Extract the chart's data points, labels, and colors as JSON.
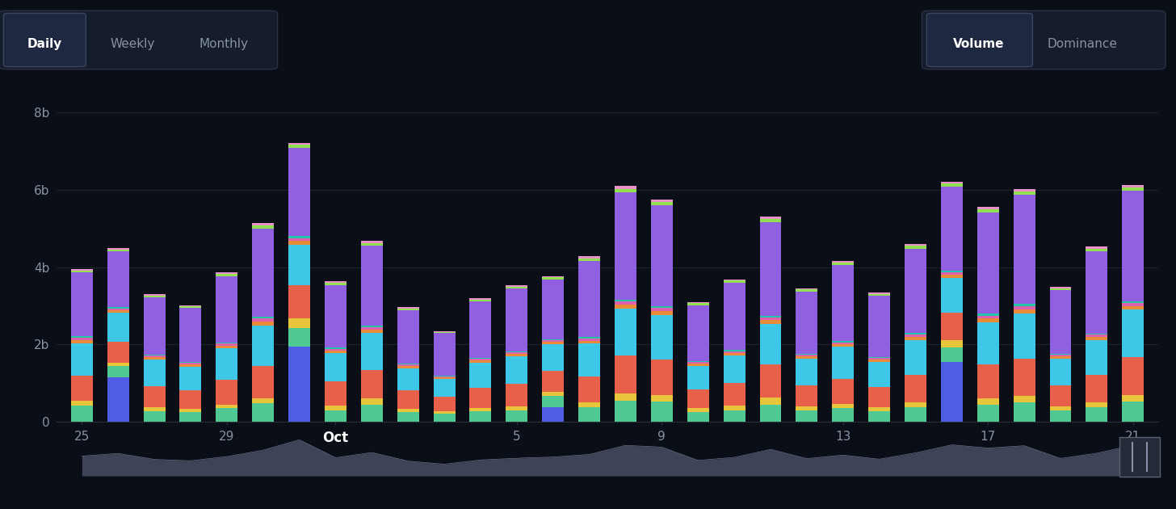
{
  "background_color": "#0a0e17",
  "plot_bg_color": "#0a0e17",
  "grid_color": "#1e2330",
  "text_color": "#8892a4",
  "ylim": [
    0,
    9000000000.0
  ],
  "ylabel_ticks": [
    "0",
    "2b",
    "4b",
    "6b",
    "8b"
  ],
  "ylabel_vals": [
    0,
    2000000000.0,
    4000000000.0,
    6000000000.0,
    8000000000.0
  ],
  "bar_width": 0.6,
  "layers": [
    {
      "name": "blue",
      "color": "#4e5de4",
      "values": [
        0.0,
        1.15,
        0.0,
        0.0,
        0.0,
        0.0,
        1.95,
        0.0,
        0.0,
        0.0,
        0.0,
        0.0,
        0.0,
        0.38,
        0.0,
        0.0,
        0.0,
        0.0,
        0.0,
        0.0,
        0.0,
        0.0,
        0.0,
        0.0,
        1.55,
        0.0,
        0.0,
        0.0,
        0.0,
        0.0
      ]
    },
    {
      "name": "green",
      "color": "#4ec994",
      "values": [
        0.42,
        0.3,
        0.28,
        0.25,
        0.35,
        0.48,
        0.48,
        0.3,
        0.45,
        0.25,
        0.22,
        0.28,
        0.3,
        0.3,
        0.38,
        0.55,
        0.52,
        0.25,
        0.3,
        0.45,
        0.3,
        0.35,
        0.28,
        0.38,
        0.38,
        0.45,
        0.5,
        0.3,
        0.38,
        0.52
      ]
    },
    {
      "name": "yellow",
      "color": "#e8c53a",
      "values": [
        0.12,
        0.08,
        0.1,
        0.08,
        0.1,
        0.12,
        0.25,
        0.12,
        0.15,
        0.08,
        0.06,
        0.08,
        0.1,
        0.1,
        0.12,
        0.18,
        0.18,
        0.1,
        0.12,
        0.18,
        0.1,
        0.12,
        0.1,
        0.12,
        0.18,
        0.15,
        0.18,
        0.1,
        0.12,
        0.18
      ]
    },
    {
      "name": "red",
      "color": "#e8604a",
      "values": [
        0.65,
        0.55,
        0.55,
        0.48,
        0.65,
        0.85,
        0.85,
        0.62,
        0.75,
        0.48,
        0.38,
        0.52,
        0.58,
        0.55,
        0.68,
        0.98,
        0.92,
        0.48,
        0.58,
        0.85,
        0.55,
        0.65,
        0.52,
        0.72,
        0.72,
        0.88,
        0.95,
        0.55,
        0.72,
        0.98
      ]
    },
    {
      "name": "cyan",
      "color": "#3ec8e8",
      "values": [
        0.85,
        0.75,
        0.68,
        0.62,
        0.8,
        1.05,
        1.05,
        0.75,
        0.95,
        0.58,
        0.45,
        0.65,
        0.72,
        0.68,
        0.85,
        1.22,
        1.15,
        0.62,
        0.72,
        1.05,
        0.68,
        0.82,
        0.65,
        0.9,
        0.9,
        1.1,
        1.18,
        0.68,
        0.9,
        1.22
      ]
    },
    {
      "name": "orange",
      "color": "#e88c3a",
      "values": [
        0.08,
        0.06,
        0.06,
        0.05,
        0.07,
        0.1,
        0.1,
        0.06,
        0.08,
        0.05,
        0.04,
        0.06,
        0.06,
        0.06,
        0.07,
        0.1,
        0.1,
        0.05,
        0.06,
        0.1,
        0.06,
        0.07,
        0.06,
        0.08,
        0.08,
        0.1,
        0.1,
        0.06,
        0.08,
        0.1
      ]
    },
    {
      "name": "magenta",
      "color": "#e060b0",
      "values": [
        0.05,
        0.04,
        0.04,
        0.04,
        0.05,
        0.07,
        0.07,
        0.04,
        0.06,
        0.04,
        0.03,
        0.04,
        0.04,
        0.04,
        0.05,
        0.08,
        0.07,
        0.04,
        0.05,
        0.07,
        0.04,
        0.05,
        0.04,
        0.06,
        0.06,
        0.07,
        0.08,
        0.04,
        0.05,
        0.07
      ]
    },
    {
      "name": "teal",
      "color": "#20c8a8",
      "values": [
        0.04,
        0.03,
        0.03,
        0.03,
        0.04,
        0.05,
        0.05,
        0.03,
        0.04,
        0.03,
        0.02,
        0.03,
        0.03,
        0.03,
        0.04,
        0.05,
        0.05,
        0.03,
        0.04,
        0.05,
        0.03,
        0.04,
        0.03,
        0.04,
        0.04,
        0.05,
        0.06,
        0.03,
        0.04,
        0.05
      ]
    },
    {
      "name": "purple",
      "color": "#9060e0",
      "values": [
        1.65,
        1.45,
        1.48,
        1.4,
        1.7,
        2.28,
        2.28,
        1.62,
        2.08,
        1.38,
        1.1,
        1.45,
        1.62,
        1.55,
        1.98,
        2.78,
        2.62,
        1.45,
        1.72,
        2.42,
        1.6,
        1.95,
        1.58,
        2.18,
        2.18,
        2.62,
        2.82,
        1.65,
        2.12,
        2.85
      ]
    },
    {
      "name": "lime",
      "color": "#90e050",
      "values": [
        0.06,
        0.05,
        0.05,
        0.04,
        0.06,
        0.08,
        0.08,
        0.05,
        0.07,
        0.04,
        0.03,
        0.05,
        0.05,
        0.05,
        0.06,
        0.09,
        0.08,
        0.05,
        0.06,
        0.08,
        0.06,
        0.06,
        0.05,
        0.07,
        0.07,
        0.08,
        0.09,
        0.05,
        0.07,
        0.09
      ]
    },
    {
      "name": "pink",
      "color": "#e890c8",
      "values": [
        0.04,
        0.03,
        0.03,
        0.03,
        0.04,
        0.06,
        0.06,
        0.04,
        0.05,
        0.03,
        0.02,
        0.03,
        0.04,
        0.03,
        0.05,
        0.07,
        0.06,
        0.03,
        0.04,
        0.06,
        0.04,
        0.05,
        0.03,
        0.05,
        0.05,
        0.06,
        0.07,
        0.03,
        0.05,
        0.06
      ]
    }
  ],
  "x_tick_map": {
    "0": "25",
    "4": "29",
    "7": "Oct",
    "12": "5",
    "16": "9",
    "21": "13",
    "25": "17",
    "29": "21"
  }
}
